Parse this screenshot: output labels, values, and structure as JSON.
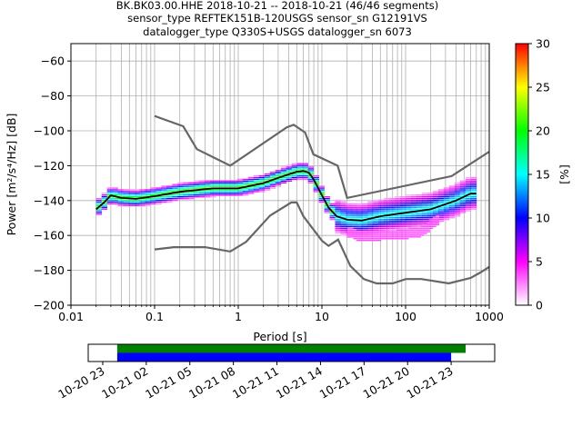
{
  "chart_data": [
    {
      "type": "heatmap",
      "title_lines": [
        "BK.BK03.00.HHE   2018-10-21 -- 2018-10-21  (46/46 segments)",
        "sensor_type REFTEK151B-120USGS sensor_sn G12191VS",
        "datalogger_type Q330S+USGS datalogger_sn 6073"
      ],
      "xlabel": "Period [s]",
      "ylabel": "Power [m²/s⁴/Hz] [dB]",
      "x_scale": "log",
      "xlim": [
        0.01,
        1000
      ],
      "ylim": [
        -200,
        -50
      ],
      "x_tick_labels": [
        "0.01",
        "0.1",
        "1",
        "10",
        "100",
        "1000"
      ],
      "y_tick_values": [
        -200,
        -180,
        -160,
        -140,
        -120,
        -100,
        -80,
        -60
      ],
      "y_tick_labels": [
        "−200",
        "−180",
        "−160",
        "−140",
        "−120",
        "−100",
        "−80",
        "−60"
      ],
      "grid": true,
      "colorbar": {
        "label": "[%]",
        "range": [
          0,
          30
        ],
        "tick_labels": [
          "0",
          "5",
          "10",
          "15",
          "20",
          "25",
          "30"
        ],
        "colors": [
          "#ffffff",
          "#ff00ff",
          "#0000ff",
          "#00ffff",
          "#00ff00",
          "#ffff00",
          "#ff0000"
        ]
      },
      "noise_models": {
        "color": "#666666",
        "high_model": [
          [
            0.1,
            -91.5
          ],
          [
            0.22,
            -97.4
          ],
          [
            0.32,
            -110.5
          ],
          [
            0.8,
            -120
          ],
          [
            3.8,
            -98
          ],
          [
            4.6,
            -96.5
          ],
          [
            6.3,
            -101
          ],
          [
            7.9,
            -113.5
          ],
          [
            15.4,
            -120
          ],
          [
            20,
            -138.5
          ],
          [
            354.8,
            -126
          ],
          [
            1000,
            -112
          ]
        ],
        "low_model": [
          [
            0.1,
            -168
          ],
          [
            0.17,
            -166.7
          ],
          [
            0.4,
            -166.7
          ],
          [
            0.8,
            -169.2
          ],
          [
            1.24,
            -163.7
          ],
          [
            2.4,
            -148.6
          ],
          [
            4.3,
            -141.1
          ],
          [
            5,
            -141.1
          ],
          [
            6,
            -149
          ],
          [
            10,
            -163
          ],
          [
            12,
            -166
          ],
          [
            15.6,
            -162.4
          ],
          [
            21.9,
            -177.5
          ],
          [
            31.6,
            -185
          ],
          [
            45,
            -187.5
          ],
          [
            70,
            -187.5
          ],
          [
            101,
            -185
          ],
          [
            154,
            -185
          ],
          [
            328,
            -187.5
          ],
          [
            600,
            -184.4
          ],
          [
            800,
            -181
          ],
          [
            1000,
            -178
          ]
        ]
      },
      "mean_curve": {
        "color": "#000000",
        "points": [
          [
            0.02,
            -145
          ],
          [
            0.025,
            -141
          ],
          [
            0.03,
            -137
          ],
          [
            0.04,
            -138.5
          ],
          [
            0.06,
            -139
          ],
          [
            0.1,
            -137.5
          ],
          [
            0.2,
            -135
          ],
          [
            0.5,
            -133
          ],
          [
            1,
            -133
          ],
          [
            2,
            -130
          ],
          [
            3,
            -127
          ],
          [
            4,
            -125
          ],
          [
            5,
            -123.5
          ],
          [
            6,
            -123
          ],
          [
            7,
            -124
          ],
          [
            8,
            -128
          ],
          [
            10,
            -137
          ],
          [
            12,
            -144
          ],
          [
            15,
            -149
          ],
          [
            20,
            -151
          ],
          [
            30,
            -151.5
          ],
          [
            50,
            -149
          ],
          [
            100,
            -147
          ],
          [
            200,
            -145
          ],
          [
            400,
            -140
          ],
          [
            600,
            -136
          ],
          [
            700,
            -136
          ]
        ]
      },
      "density_band": {
        "upper_offset_db": 4,
        "lower_offset_db": 4,
        "low_branch": [
          [
            20,
            -158
          ],
          [
            30,
            -161
          ],
          [
            50,
            -160
          ],
          [
            80,
            -160
          ],
          [
            150,
            -158
          ],
          [
            250,
            -151
          ]
        ]
      }
    },
    {
      "type": "bar",
      "x_scale": "time",
      "xlim": [
        "2018-10-20 22:00",
        "2018-10-22 02:00"
      ],
      "x_tick_labels": [
        "10-20 23",
        "10-21 02",
        "10-21 05",
        "10-21 08",
        "10-21 11",
        "10-21 14",
        "10-21 17",
        "10-21 20",
        "10-21 23"
      ],
      "series": [
        {
          "color": "#008000",
          "start": "2018-10-21 00:00",
          "end": "2018-10-22 00:00"
        },
        {
          "color": "#0000ff",
          "start": "2018-10-21 00:00",
          "end": "2018-10-21 23:00"
        }
      ]
    }
  ]
}
